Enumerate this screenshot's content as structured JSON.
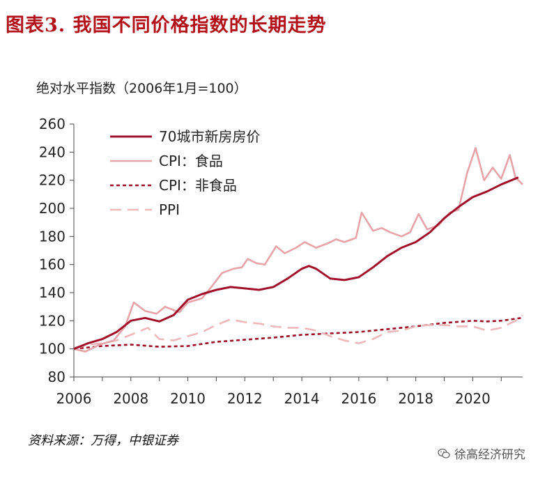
{
  "title": "图表3.  我国不同价格指数的长期走势",
  "source": "资料来源：万得，中银证券",
  "watermark": "徐高经济研究",
  "chart_data": {
    "type": "line",
    "ylabel": "绝对水平指数（2006年1月=100）",
    "xlim": [
      2006,
      2021.75
    ],
    "ylim": [
      80,
      260
    ],
    "yticks": [
      80,
      100,
      120,
      140,
      160,
      180,
      200,
      220,
      240,
      260
    ],
    "xticks": [
      2006,
      2008,
      2010,
      2012,
      2014,
      2016,
      2018,
      2020
    ],
    "legend_position": "top-left",
    "series": [
      {
        "name": "70城市新房房价",
        "color": "#a0102a",
        "style": "solid",
        "points": [
          [
            2006,
            100
          ],
          [
            2006.5,
            104
          ],
          [
            2007,
            107
          ],
          [
            2007.5,
            112
          ],
          [
            2008,
            120
          ],
          [
            2008.5,
            122
          ],
          [
            2009,
            119.5
          ],
          [
            2009.5,
            124
          ],
          [
            2010,
            135
          ],
          [
            2010.5,
            139
          ],
          [
            2011,
            142
          ],
          [
            2011.5,
            144
          ],
          [
            2012,
            143
          ],
          [
            2012.5,
            142
          ],
          [
            2013,
            144
          ],
          [
            2013.5,
            150
          ],
          [
            2014,
            157
          ],
          [
            2014.25,
            159
          ],
          [
            2014.5,
            157
          ],
          [
            2015,
            150
          ],
          [
            2015.5,
            149
          ],
          [
            2016,
            151
          ],
          [
            2016.5,
            158
          ],
          [
            2017,
            166
          ],
          [
            2017.5,
            172
          ],
          [
            2018,
            176
          ],
          [
            2018.5,
            183
          ],
          [
            2019,
            193
          ],
          [
            2019.5,
            201
          ],
          [
            2020,
            208
          ],
          [
            2020.5,
            212
          ],
          [
            2021,
            217
          ],
          [
            2021.6,
            222
          ]
        ]
      },
      {
        "name": "CPI：食品",
        "color": "#e8a3a9",
        "style": "solid",
        "points": [
          [
            2006,
            100
          ],
          [
            2006.4,
            98
          ],
          [
            2006.9,
            103
          ],
          [
            2007.4,
            106
          ],
          [
            2007.8,
            116
          ],
          [
            2008.1,
            133
          ],
          [
            2008.5,
            127
          ],
          [
            2008.9,
            125
          ],
          [
            2009.2,
            130
          ],
          [
            2009.7,
            126
          ],
          [
            2010,
            133
          ],
          [
            2010.5,
            136
          ],
          [
            2010.9,
            146
          ],
          [
            2011.2,
            154
          ],
          [
            2011.6,
            157
          ],
          [
            2011.9,
            158
          ],
          [
            2012.1,
            164
          ],
          [
            2012.4,
            161
          ],
          [
            2012.7,
            160
          ],
          [
            2013.1,
            173
          ],
          [
            2013.4,
            168
          ],
          [
            2013.8,
            172
          ],
          [
            2014.1,
            176
          ],
          [
            2014.5,
            172
          ],
          [
            2014.9,
            175
          ],
          [
            2015.2,
            178
          ],
          [
            2015.5,
            176
          ],
          [
            2015.9,
            179
          ],
          [
            2016.1,
            197
          ],
          [
            2016.5,
            184
          ],
          [
            2016.8,
            186
          ],
          [
            2017.1,
            183
          ],
          [
            2017.5,
            180
          ],
          [
            2017.8,
            183
          ],
          [
            2018.1,
            196
          ],
          [
            2018.4,
            185
          ],
          [
            2018.8,
            188
          ],
          [
            2019.2,
            197
          ],
          [
            2019.5,
            199
          ],
          [
            2019.8,
            225
          ],
          [
            2020.1,
            243
          ],
          [
            2020.4,
            220
          ],
          [
            2020.7,
            229
          ],
          [
            2021,
            221
          ],
          [
            2021.3,
            238
          ],
          [
            2021.5,
            222
          ],
          [
            2021.75,
            217
          ]
        ]
      },
      {
        "name": "CPI：非食品",
        "color": "#9a0d24",
        "style": "dotted",
        "points": [
          [
            2006,
            100
          ],
          [
            2007,
            102
          ],
          [
            2008,
            103
          ],
          [
            2009,
            101.5
          ],
          [
            2010,
            102
          ],
          [
            2011,
            105
          ],
          [
            2012,
            106.5
          ],
          [
            2013,
            108
          ],
          [
            2014,
            110
          ],
          [
            2015,
            111
          ],
          [
            2016,
            112
          ],
          [
            2017,
            114
          ],
          [
            2018,
            116
          ],
          [
            2019,
            118.5
          ],
          [
            2020,
            120
          ],
          [
            2020.5,
            119.5
          ],
          [
            2021,
            120
          ],
          [
            2021.7,
            122
          ]
        ]
      },
      {
        "name": "PPI",
        "color": "#eeb7bb",
        "style": "dashed",
        "points": [
          [
            2006,
            100
          ],
          [
            2006.5,
            103
          ],
          [
            2007,
            104
          ],
          [
            2007.5,
            106
          ],
          [
            2008,
            110
          ],
          [
            2008.6,
            115
          ],
          [
            2009,
            107
          ],
          [
            2009.5,
            106
          ],
          [
            2010,
            109
          ],
          [
            2010.5,
            112
          ],
          [
            2011,
            117
          ],
          [
            2011.5,
            121
          ],
          [
            2012,
            119
          ],
          [
            2012.5,
            118
          ],
          [
            2013,
            116
          ],
          [
            2013.5,
            115
          ],
          [
            2014,
            115
          ],
          [
            2014.5,
            113
          ],
          [
            2015,
            109
          ],
          [
            2015.5,
            106
          ],
          [
            2016,
            104
          ],
          [
            2016.5,
            107
          ],
          [
            2017,
            112
          ],
          [
            2017.5,
            113
          ],
          [
            2018,
            116
          ],
          [
            2018.5,
            117
          ],
          [
            2019,
            117
          ],
          [
            2019.5,
            116
          ],
          [
            2020,
            116
          ],
          [
            2020.5,
            113
          ],
          [
            2021,
            115
          ],
          [
            2021.5,
            120
          ],
          [
            2021.75,
            124
          ]
        ]
      }
    ]
  }
}
